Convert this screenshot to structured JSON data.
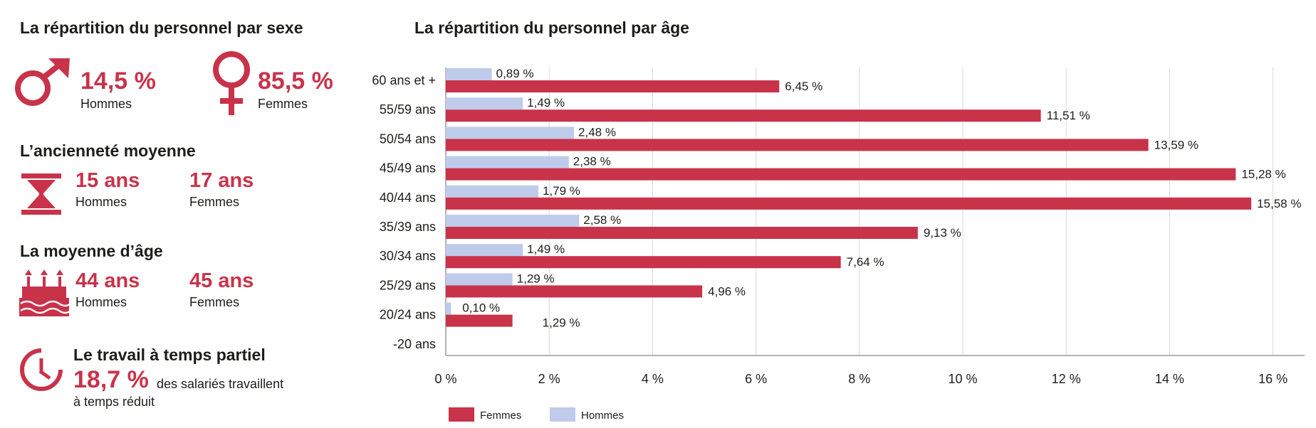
{
  "left_panel": {
    "sexe": {
      "title": "La répartition du personnel par sexe",
      "hommes_pct": "14,5 %",
      "hommes_label": "Hommes",
      "femmes_pct": "85,5 %",
      "femmes_label": "Femmes"
    },
    "anciennete": {
      "title": "L’ancienneté moyenne",
      "hommes_value": "15 ans",
      "hommes_label": "Hommes",
      "femmes_value": "17 ans",
      "femmes_label": "Femmes"
    },
    "age_moyen": {
      "title": "La moyenne d’âge",
      "hommes_value": "44 ans",
      "hommes_label": "Hommes",
      "femmes_value": "45 ans",
      "femmes_label": "Femmes"
    },
    "temps_partiel": {
      "title": "Le travail à temps partiel",
      "value": "18,7 %",
      "text_line1": "des salariés travaillent",
      "text_line2": "à temps réduit"
    },
    "icons": [
      "male-symbol-icon",
      "female-symbol-icon",
      "hourglass-icon",
      "birthday-cake-icon",
      "clock-icon"
    ]
  },
  "colors": {
    "femmes": "#c8334a",
    "hommes": "#bfcbea",
    "accent_text": "#c8334a",
    "grid": "#d9d9d9"
  },
  "chart_data": {
    "type": "bar",
    "orientation": "horizontal",
    "title": "La répartition du personnel par âge",
    "categories": [
      "60 ans et +",
      "55/59 ans",
      "50/54 ans",
      "45/49 ans",
      "40/44 ans",
      "35/39 ans",
      "30/34 ans",
      "25/29 ans",
      "20/24 ans",
      "-20 ans"
    ],
    "series": [
      {
        "name": "Hommes",
        "color": "#bfcbea",
        "values": [
          0.89,
          1.49,
          2.48,
          2.38,
          1.79,
          2.58,
          1.49,
          1.29,
          0.1,
          null
        ],
        "labels": [
          "0,89 %",
          "1,49 %",
          "2,48 %",
          "2,38 %",
          "1,79 %",
          "2,58 %",
          "1,49 %",
          "1,29 %",
          "0,10 %",
          ""
        ]
      },
      {
        "name": "Femmes",
        "color": "#c8334a",
        "values": [
          6.45,
          11.51,
          13.59,
          15.28,
          15.58,
          9.13,
          7.64,
          4.96,
          1.29,
          null
        ],
        "labels": [
          "6,45 %",
          "11,51 %",
          "13,59 %",
          "15,28 %",
          "15,58 %",
          "9,13 %",
          "7,64 %",
          "4,96 %",
          "1,29 %",
          ""
        ]
      }
    ],
    "xlim": [
      0,
      16.7
    ],
    "xticks": [
      0,
      2,
      4,
      6,
      8,
      10,
      12,
      14,
      16
    ],
    "xtick_labels": [
      "0 %",
      "2 %",
      "4 %",
      "6 %",
      "8 %",
      "10 %",
      "12 %",
      "14 %",
      "16 %"
    ],
    "grid": true,
    "legend": {
      "placement": "bottom-left",
      "entries": [
        "Femmes",
        "Hommes"
      ]
    }
  }
}
